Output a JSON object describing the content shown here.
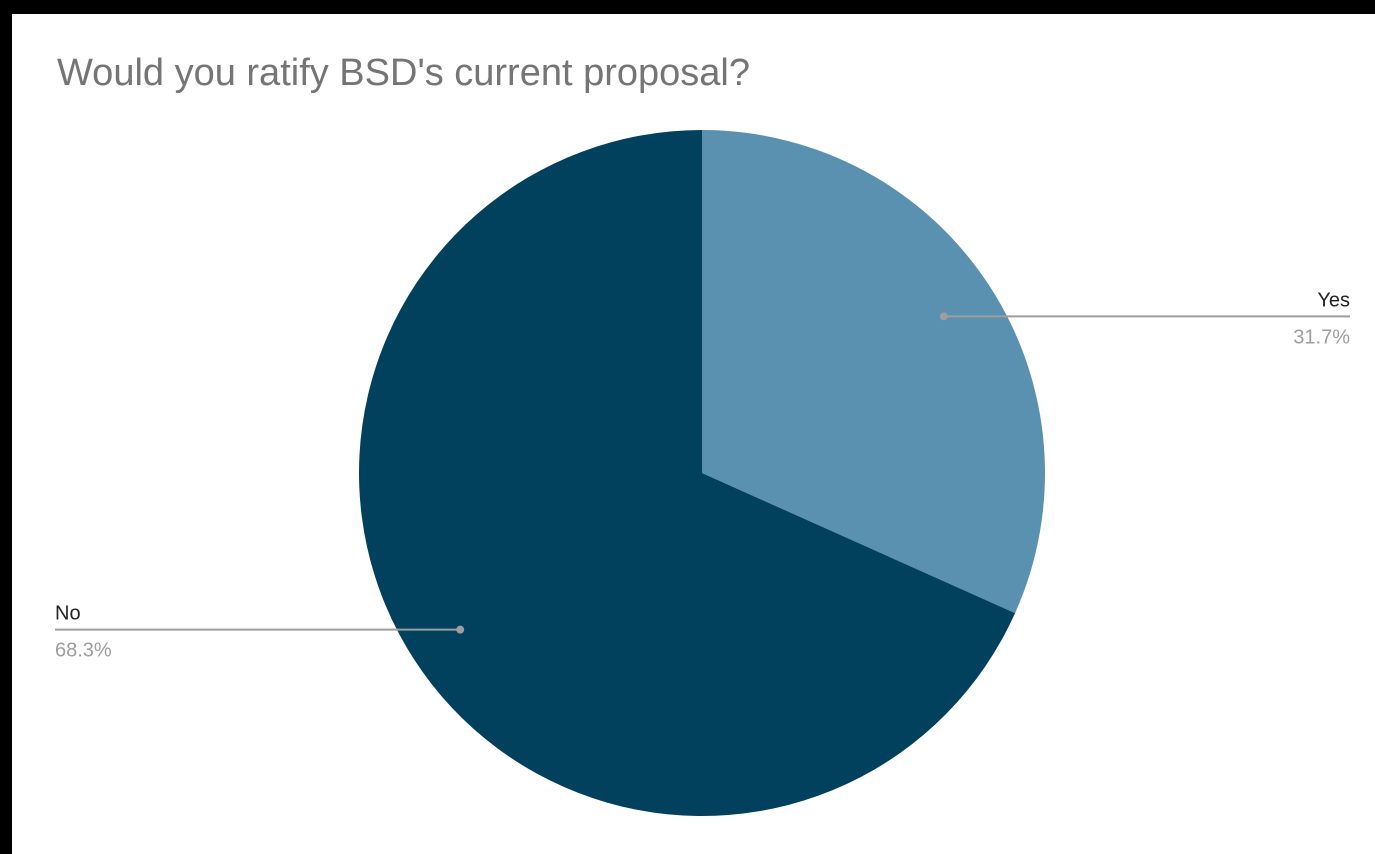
{
  "chart_data": {
    "type": "pie",
    "title": "Would you ratify BSD's current proposal?",
    "slices": [
      {
        "name": "Yes",
        "value": 31.7,
        "label": "31.7%",
        "color": "#5a90b0"
      },
      {
        "name": "No",
        "value": 68.3,
        "label": "68.3%",
        "color": "#02415e"
      }
    ],
    "start_angle": "12 o'clock",
    "direction": "clockwise",
    "legend": "none",
    "label_placement": "outside with leader lines"
  },
  "colors": {
    "background": "#ffffff",
    "title": "#757575",
    "label": "#222222",
    "percent": "#9e9e9e",
    "leader": "#9e9e9e"
  }
}
